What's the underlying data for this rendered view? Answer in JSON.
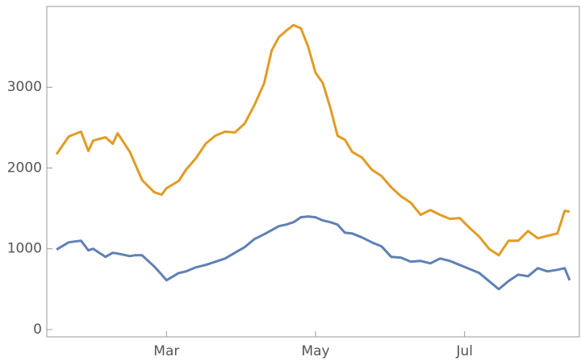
{
  "chart_data": {
    "type": "line",
    "x": [
      15,
      20,
      25,
      28,
      30,
      35,
      38,
      40,
      45,
      47,
      50,
      55,
      58,
      60,
      65,
      68,
      72,
      76,
      80,
      84,
      88,
      92,
      96,
      100,
      103,
      106,
      109,
      112,
      115,
      118,
      121,
      124,
      127,
      130,
      133,
      136,
      140,
      144,
      148,
      152,
      156,
      160,
      164,
      168,
      172,
      176,
      180,
      184,
      188,
      192,
      196,
      200,
      204,
      208,
      212,
      216,
      220,
      223,
      225
    ],
    "series": [
      {
        "color": "#e19c24",
        "values": [
          2170,
          2390,
          2450,
          2210,
          2340,
          2380,
          2300,
          2430,
          2200,
          2060,
          1850,
          1700,
          1670,
          1750,
          1840,
          1980,
          2120,
          2300,
          2400,
          2450,
          2440,
          2550,
          2780,
          3050,
          3450,
          3620,
          3700,
          3770,
          3730,
          3500,
          3180,
          3050,
          2750,
          2400,
          2350,
          2200,
          2130,
          1980,
          1900,
          1760,
          1650,
          1570,
          1420,
          1480,
          1420,
          1370,
          1380,
          1260,
          1150,
          1000,
          920,
          1100,
          1100,
          1220,
          1130,
          1160,
          1190,
          1470,
          1460
        ]
      },
      {
        "color": "#5e81b5",
        "values": [
          990,
          1080,
          1100,
          980,
          1000,
          900,
          950,
          940,
          910,
          920,
          920,
          780,
          680,
          610,
          700,
          720,
          770,
          800,
          840,
          880,
          950,
          1020,
          1120,
          1180,
          1230,
          1280,
          1300,
          1330,
          1390,
          1400,
          1390,
          1350,
          1330,
          1300,
          1200,
          1190,
          1140,
          1080,
          1030,
          900,
          890,
          840,
          850,
          820,
          880,
          850,
          800,
          750,
          700,
          600,
          500,
          600,
          680,
          660,
          760,
          720,
          740,
          760,
          610
        ]
      }
    ],
    "xlim": [
      11,
      229
    ],
    "xticks": [
      {
        "value": 60,
        "label": "Mar"
      },
      {
        "value": 121,
        "label": "May"
      },
      {
        "value": 182,
        "label": "Jul"
      }
    ],
    "ylim": [
      -90,
      4000
    ],
    "yticks": [
      0,
      1000,
      2000,
      3000
    ]
  }
}
